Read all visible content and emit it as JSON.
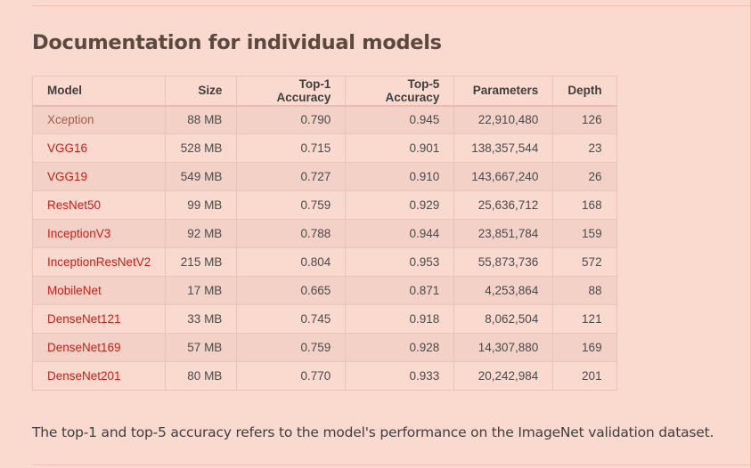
{
  "section": {
    "title": "Documentation for individual models",
    "note": "The top-1 and top-5 accuracy refers to the model's performance on the ImageNet validation dataset."
  },
  "table": {
    "headers": {
      "model": "Model",
      "size": "Size",
      "top1": "Top-1 Accuracy",
      "top5": "Top-5 Accuracy",
      "params": "Parameters",
      "depth": "Depth"
    },
    "rows": [
      {
        "model": "Xception",
        "size": "88 MB",
        "top1": "0.790",
        "top5": "0.945",
        "params": "22,910,480",
        "depth": "126"
      },
      {
        "model": "VGG16",
        "size": "528 MB",
        "top1": "0.715",
        "top5": "0.901",
        "params": "138,357,544",
        "depth": "23"
      },
      {
        "model": "VGG19",
        "size": "549 MB",
        "top1": "0.727",
        "top5": "0.910",
        "params": "143,667,240",
        "depth": "26"
      },
      {
        "model": "ResNet50",
        "size": "99 MB",
        "top1": "0.759",
        "top5": "0.929",
        "params": "25,636,712",
        "depth": "168"
      },
      {
        "model": "InceptionV3",
        "size": "92 MB",
        "top1": "0.788",
        "top5": "0.944",
        "params": "23,851,784",
        "depth": "159"
      },
      {
        "model": "InceptionResNetV2",
        "size": "215 MB",
        "top1": "0.804",
        "top5": "0.953",
        "params": "55,873,736",
        "depth": "572"
      },
      {
        "model": "MobileNet",
        "size": "17 MB",
        "top1": "0.665",
        "top5": "0.871",
        "params": "4,253,864",
        "depth": "88"
      },
      {
        "model": "DenseNet121",
        "size": "33 MB",
        "top1": "0.745",
        "top5": "0.918",
        "params": "8,062,504",
        "depth": "121"
      },
      {
        "model": "DenseNet169",
        "size": "57 MB",
        "top1": "0.759",
        "top5": "0.928",
        "params": "14,307,880",
        "depth": "169"
      },
      {
        "model": "DenseNet201",
        "size": "80 MB",
        "top1": "0.770",
        "top5": "0.933",
        "params": "20,242,984",
        "depth": "201"
      }
    ]
  },
  "colors": {
    "background": "#fad9cf",
    "stripe": "#f3d1c7",
    "link": "#c0241c",
    "visited_link": "#a55a4c",
    "heading": "#5a4a43"
  }
}
